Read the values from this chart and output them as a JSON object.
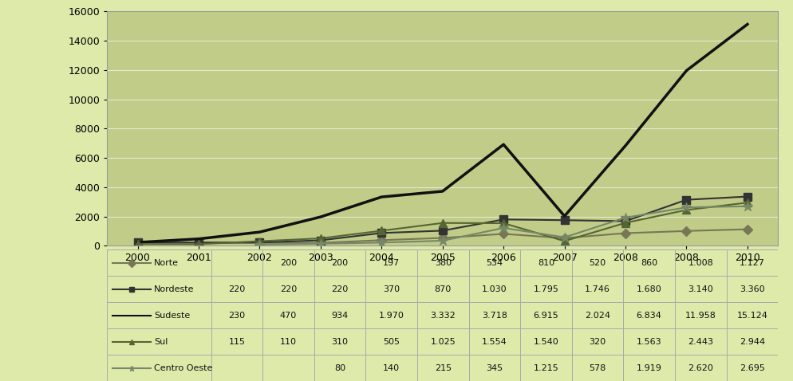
{
  "x_labels": [
    "2000",
    "2001",
    "2002",
    "2003",
    "2004",
    "2005",
    "2006",
    "2007",
    "2008",
    "2008",
    "2010"
  ],
  "series": {
    "Norte": {
      "values": [
        null,
        200,
        200,
        197,
        380,
        534,
        810,
        520,
        860,
        1008,
        1127
      ],
      "color": "#777755",
      "marker": "D",
      "markersize": 6,
      "linewidth": 1.5
    },
    "Nordeste": {
      "values": [
        220,
        220,
        220,
        370,
        870,
        1030,
        1795,
        1746,
        1680,
        3140,
        3360
      ],
      "color": "#333333",
      "marker": "s",
      "markersize": 7,
      "linewidth": 1.5
    },
    "Sudeste": {
      "values": [
        230,
        470,
        934,
        1970,
        3332,
        3718,
        6915,
        2024,
        6834,
        11958,
        15124
      ],
      "color": "#111111",
      "marker": null,
      "markersize": 0,
      "linewidth": 2.5
    },
    "Sul": {
      "values": [
        115,
        110,
        310,
        505,
        1025,
        1554,
        1540,
        320,
        1563,
        2443,
        2944
      ],
      "color": "#556633",
      "marker": "^",
      "markersize": 7,
      "linewidth": 1.5
    },
    "Centro Oeste": {
      "values": [
        null,
        null,
        80,
        140,
        215,
        345,
        1215,
        578,
        1919,
        2620,
        2695
      ],
      "color": "#778866",
      "marker": "*",
      "markersize": 9,
      "linewidth": 1.5
    }
  },
  "series_order": [
    "Norte",
    "Nordeste",
    "Sudeste",
    "Sul",
    "Centro Oeste"
  ],
  "ylim": [
    0,
    16000
  ],
  "yticks": [
    0,
    2000,
    4000,
    6000,
    8000,
    10000,
    12000,
    14000,
    16000
  ],
  "bg_outer": "#ddeaaa",
  "bg_plot": "#c0cc88",
  "bg_table": "#eef5cc",
  "table_data": {
    "Norte": [
      null,
      200,
      200,
      197,
      380,
      534,
      810,
      520,
      860,
      1008,
      1127
    ],
    "Nordeste": [
      220,
      220,
      220,
      370,
      870,
      1030,
      1795,
      1746,
      1680,
      3140,
      3360
    ],
    "Sudeste": [
      230,
      470,
      934,
      1970,
      3332,
      3718,
      6915,
      2024,
      6834,
      11958,
      15124
    ],
    "Sul": [
      115,
      110,
      310,
      505,
      1025,
      1554,
      1540,
      320,
      1563,
      2443,
      2944
    ],
    "Centro Oeste": [
      null,
      null,
      80,
      140,
      215,
      345,
      1215,
      578,
      1919,
      2620,
      2695
    ]
  },
  "grid_color": "#ffffff",
  "grid_alpha": 0.6,
  "tick_fontsize": 9,
  "table_fontsize": 8
}
